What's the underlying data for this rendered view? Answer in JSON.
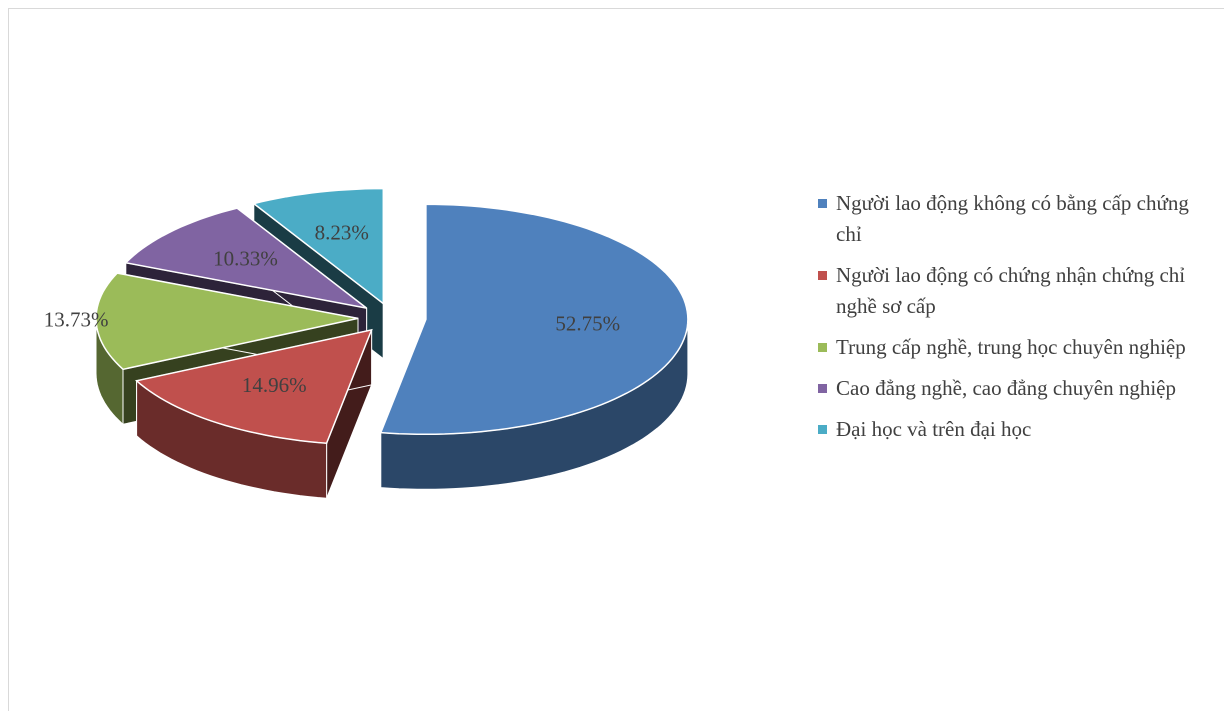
{
  "chart_data": {
    "type": "pie",
    "categories": [
      "Người lao động không có bằng cấp chứng chỉ",
      "Người lao động có chứng nhận chứng chỉ nghề sơ cấp",
      "Trung cấp nghề, trung học chuyên nghiệp",
      "Cao đẳng nghề, cao đẳng chuyên nghiệp",
      "Đại học và trên đại học"
    ],
    "values": [
      52.75,
      14.96,
      13.73,
      10.33,
      8.23
    ],
    "value_labels": [
      "52.75%",
      "14.96%",
      "13.73%",
      "10.33%",
      "8.23%"
    ],
    "colors": [
      "#4f81bd",
      "#c0504d",
      "#9bbb59",
      "#8064a2",
      "#4bacc6"
    ],
    "legend": "right"
  }
}
